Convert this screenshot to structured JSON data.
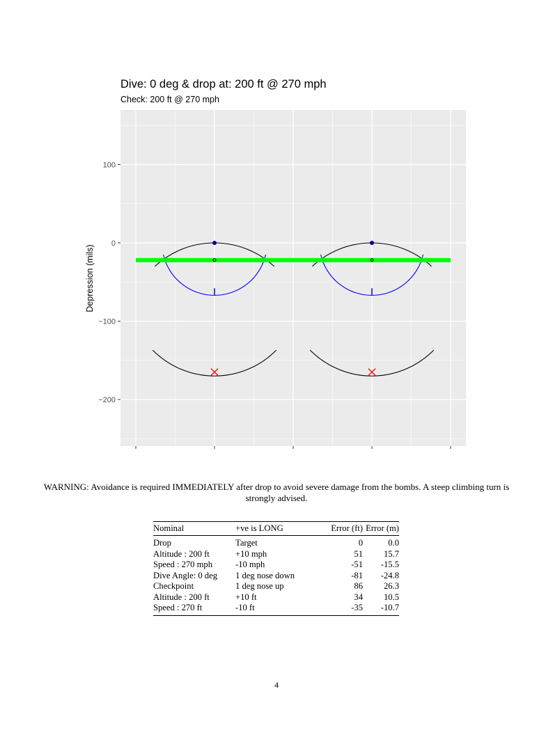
{
  "chart_data": {
    "type": "scatter",
    "title": "Dive: 0 deg & drop at: 200 ft @ 270 mph",
    "subtitle": "Check: 200 ft @ 270 mph",
    "ylabel": "Depression (mils)",
    "xlabel": "",
    "y_ticks": [
      100,
      0,
      -100,
      -200
    ],
    "ylim": [
      -260,
      170
    ],
    "grid": true,
    "sight_centers_x": [
      -1,
      1
    ],
    "green_line_y": -22,
    "aim_dot_y": 0,
    "check_circle_y": -22,
    "target_cross_y": -165,
    "upper_arc": {
      "center_y": 0,
      "edge_y": -30
    },
    "blue_arc": {
      "center_y": 0,
      "radius": 67,
      "ends_at_y": -15,
      "tick_y": [
        -58,
        -67
      ]
    },
    "lower_arc": {
      "low_y": -170,
      "edge_y": -137
    },
    "colors": {
      "panel": "#ebebeb",
      "grid": "#ffffff",
      "green": "#00ff00",
      "blue": "#0000ff",
      "cross": "#ff0000",
      "dot": "#00008b",
      "line": "#000000"
    }
  },
  "warning": "WARNING: Avoidance is required IMMEDIATELY after drop to avoid severe damage from the bombs. A steep climbing turn is strongly advised.",
  "table": {
    "headers": [
      "Nominal",
      "+ve is LONG",
      "Error (ft)",
      "Error (m)"
    ],
    "rows": [
      [
        "Drop",
        "Target",
        "0",
        "0.0"
      ],
      [
        "Altitude : 200 ft",
        "+10 mph",
        "51",
        "15.7"
      ],
      [
        "Speed : 270 mph",
        "-10 mph",
        "-51",
        "-15.5"
      ],
      [
        "Dive Angle: 0 deg",
        "1 deg nose down",
        "-81",
        "-24.8"
      ],
      [
        "Checkpoint",
        "1 deg nose up",
        "86",
        "26.3"
      ],
      [
        "Altitude : 200 ft",
        "+10 ft",
        "34",
        "10.5"
      ],
      [
        "Speed : 270 ft",
        "-10 ft",
        "-35",
        "-10.7"
      ]
    ]
  },
  "page_number": "4"
}
